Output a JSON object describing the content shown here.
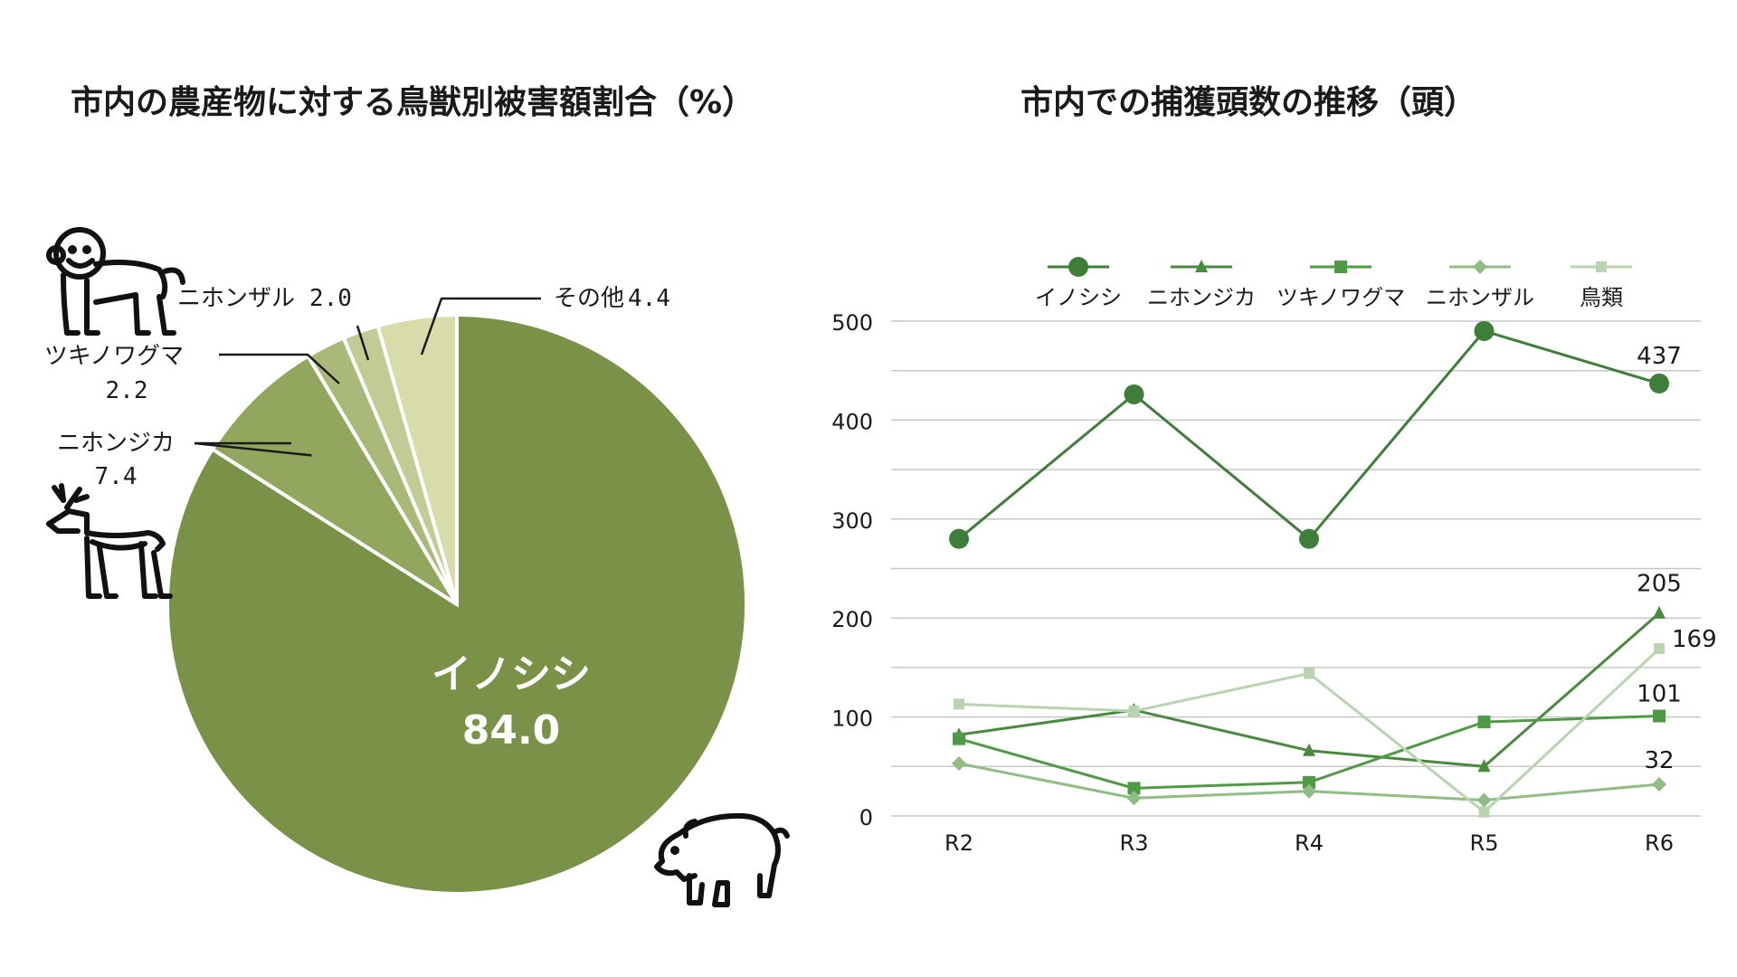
{
  "colors": {
    "inoshishi": "#7a9148",
    "nihonjika": "#93a65e",
    "tsukinowaguma": "#aab97a",
    "nihonzaru": "#c1cb94",
    "sonota": "#d8dcab",
    "line_inoshishi": "#3e7d3a",
    "line_nihonjika": "#4a8a3e",
    "line_tsukinowaguma": "#4f9a45",
    "line_nihonzaru": "#8fbd84",
    "line_choui": "#b9d4b0",
    "grid": "#c8c8c8",
    "text": "#1a1a1a"
  },
  "chart_data": [
    {
      "type": "pie",
      "title": "市内の農産物に対する鳥獣別被害額割合（%）",
      "slices": [
        {
          "name": "イノシシ",
          "value": 84.0,
          "label": "84.0",
          "color_key": "inoshishi"
        },
        {
          "name": "ニホンジカ",
          "value": 7.4,
          "label": "7.4",
          "color_key": "nihonjika"
        },
        {
          "name": "ツキノワグマ",
          "value": 2.2,
          "label": "2.2",
          "color_key": "tsukinowaguma"
        },
        {
          "name": "ニホンザル",
          "value": 2.0,
          "label": "2.0",
          "color_key": "nihonzaru"
        },
        {
          "name": "その他",
          "value": 4.4,
          "label": "4.4",
          "color_key": "sonota"
        }
      ],
      "icons": [
        "monkey-icon",
        "deer-icon",
        "boar-icon"
      ]
    },
    {
      "type": "line",
      "title": "市内での捕獲頭数の推移（頭）",
      "categories": [
        "R2",
        "R3",
        "R4",
        "R5",
        "R6"
      ],
      "ylim": [
        0,
        500
      ],
      "yticks": [
        0,
        100,
        200,
        300,
        400,
        500
      ],
      "grid": true,
      "legend": "top",
      "series": [
        {
          "name": "イノシシ",
          "values": [
            280,
            426,
            280,
            490,
            437
          ],
          "marker": "circle",
          "color_key": "line_inoshishi",
          "end_label": "437"
        },
        {
          "name": "ニホンジカ",
          "values": [
            82,
            107,
            66,
            50,
            205
          ],
          "marker": "triangle",
          "color_key": "line_nihonjika",
          "end_label": "205"
        },
        {
          "name": "ツキノワグマ",
          "values": [
            78,
            28,
            34,
            95,
            101
          ],
          "marker": "square",
          "color_key": "line_tsukinowaguma",
          "end_label": "101"
        },
        {
          "name": "ニホンザル",
          "values": [
            53,
            18,
            25,
            16,
            32
          ],
          "marker": "diamond",
          "color_key": "line_nihonzaru",
          "end_label": "32"
        },
        {
          "name": "鳥類",
          "values": [
            113,
            106,
            144,
            4,
            169
          ],
          "marker": "square-small",
          "color_key": "line_choui",
          "end_label": "169"
        }
      ]
    }
  ]
}
